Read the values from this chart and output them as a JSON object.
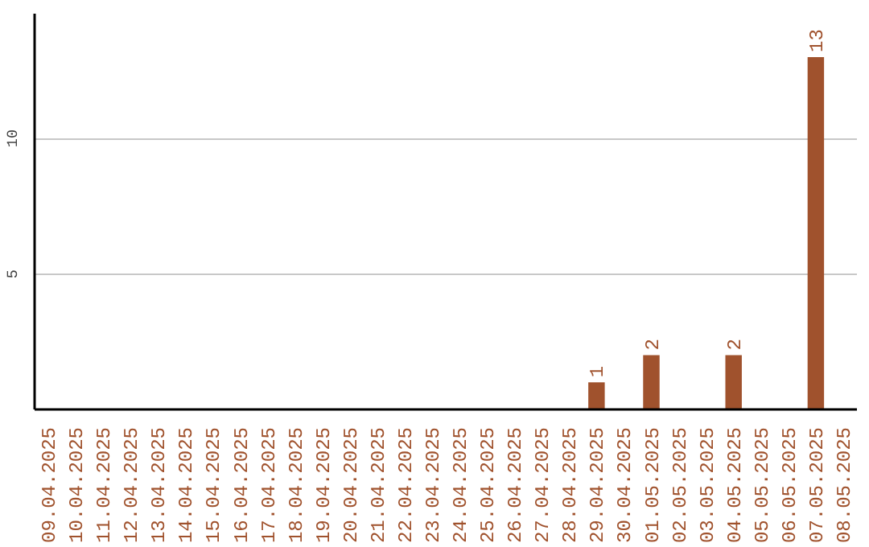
{
  "chart_data": {
    "type": "bar",
    "categories": [
      "09.04.2025",
      "10.04.2025",
      "11.04.2025",
      "12.04.2025",
      "13.04.2025",
      "14.04.2025",
      "15.04.2025",
      "16.04.2025",
      "17.04.2025",
      "18.04.2025",
      "19.04.2025",
      "20.04.2025",
      "21.04.2025",
      "22.04.2025",
      "23.04.2025",
      "24.04.2025",
      "25.04.2025",
      "26.04.2025",
      "27.04.2025",
      "28.04.2025",
      "29.04.2025",
      "30.04.2025",
      "01.05.2025",
      "02.05.2025",
      "03.05.2025",
      "04.05.2025",
      "05.05.2025",
      "06.05.2025",
      "07.05.2025",
      "08.05.2025"
    ],
    "values": [
      0,
      0,
      0,
      0,
      0,
      0,
      0,
      0,
      0,
      0,
      0,
      0,
      0,
      0,
      0,
      0,
      0,
      0,
      0,
      0,
      1,
      0,
      2,
      0,
      0,
      2,
      0,
      0,
      13,
      0
    ],
    "value_labels": [
      null,
      null,
      null,
      null,
      null,
      null,
      null,
      null,
      null,
      null,
      null,
      null,
      null,
      null,
      null,
      null,
      null,
      null,
      null,
      null,
      "1",
      null,
      "2",
      null,
      null,
      "2",
      null,
      null,
      "13",
      null
    ],
    "color": "#a0522d",
    "ylim": [
      0,
      14.6
    ],
    "yticks": [
      5,
      10
    ],
    "grid": "y"
  }
}
